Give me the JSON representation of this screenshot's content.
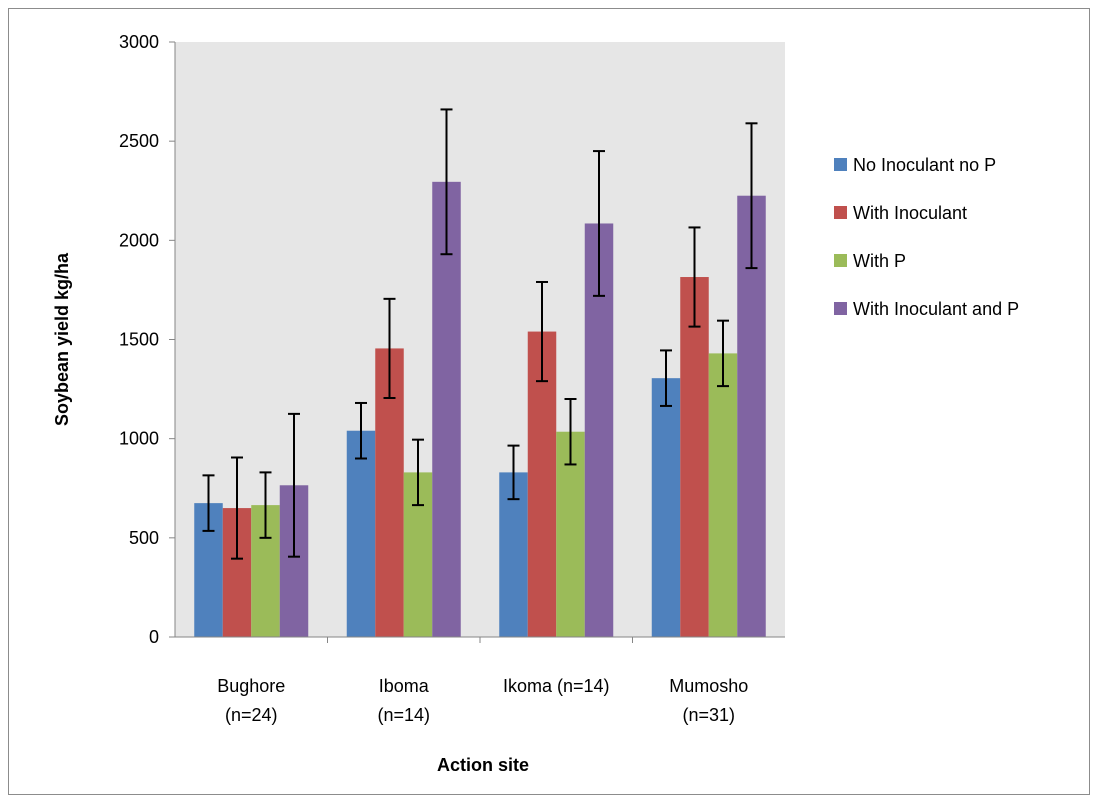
{
  "chart_data": {
    "type": "bar",
    "categories": [
      [
        "Bughore",
        "(n=24)"
      ],
      [
        "Iboma",
        "(n=14)"
      ],
      [
        "Ikoma  (n=14)"
      ],
      [
        "Mumosho",
        "(n=31)"
      ]
    ],
    "series": [
      {
        "name": "No Inoculant no P",
        "color": "#4f81bd",
        "values": [
          675,
          1040,
          830,
          1305
        ],
        "errors": [
          140,
          140,
          135,
          140
        ]
      },
      {
        "name": "With Inoculant",
        "color": "#c0504d",
        "values": [
          650,
          1455,
          1540,
          1815
        ],
        "errors": [
          255,
          250,
          250,
          250
        ]
      },
      {
        "name": "With P",
        "color": "#9bbb59",
        "values": [
          665,
          830,
          1035,
          1430
        ],
        "errors": [
          165,
          165,
          165,
          165
        ]
      },
      {
        "name": "With  Inoculant and P",
        "color": "#8064a2",
        "values": [
          765,
          2295,
          2085,
          2225
        ],
        "errors": [
          360,
          365,
          365,
          365
        ]
      }
    ],
    "ylim": [
      0,
      3000
    ],
    "yticks": [
      "0",
      "500",
      "1000",
      "1500",
      "2000",
      "2500",
      "3000"
    ],
    "xlabel": "Action site",
    "ylabel": "Soybean yield kg/ha",
    "plot_background": "#e6e6e6",
    "grid": false,
    "legend_position": "right"
  }
}
